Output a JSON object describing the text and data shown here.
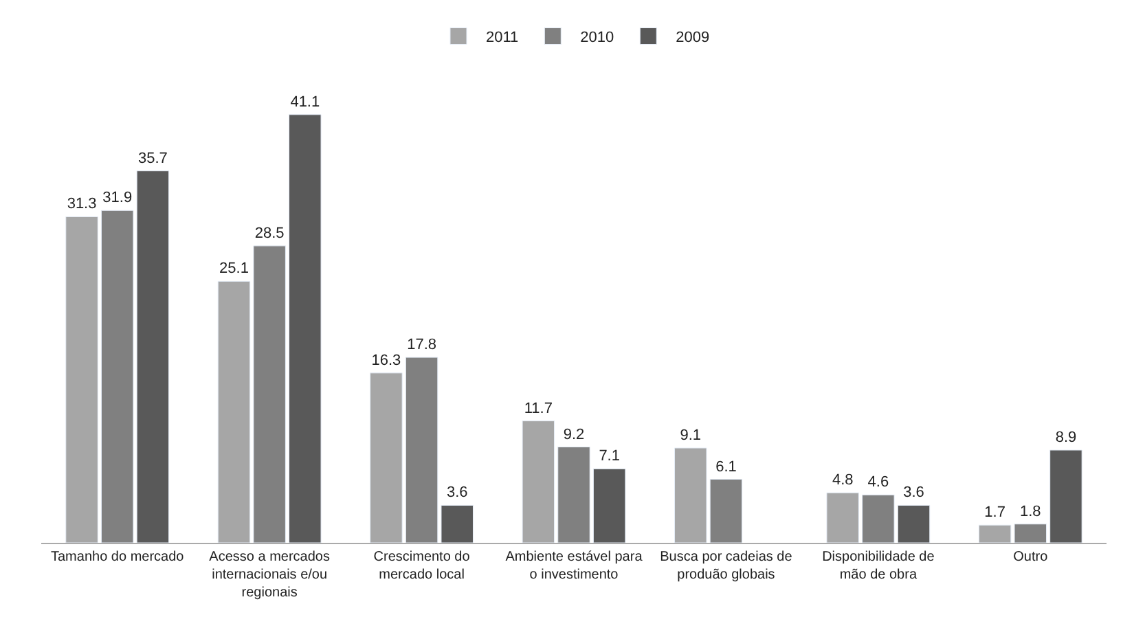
{
  "chart_data": {
    "type": "bar",
    "categories": [
      "Tamanho do mercado",
      "Acesso a mercados internacionais e/ou regionais",
      "Crescimento do mercado local",
      "Ambiente estável para o investimento",
      "Busca por cadeias de produão globais",
      "Disponibilidade de mão de obra",
      "Outro"
    ],
    "series": [
      {
        "name": "2011",
        "color": "#a6a6a6",
        "values": [
          31.3,
          25.1,
          16.3,
          11.7,
          9.1,
          4.8,
          1.7
        ]
      },
      {
        "name": "2010",
        "color": "#808080",
        "values": [
          31.9,
          28.5,
          17.8,
          9.2,
          6.1,
          4.6,
          1.8
        ]
      },
      {
        "name": "2009",
        "color": "#595959",
        "values": [
          35.7,
          41.1,
          3.6,
          7.1,
          null,
          3.6,
          8.9
        ]
      }
    ],
    "data_labels": true,
    "legend": "top"
  }
}
